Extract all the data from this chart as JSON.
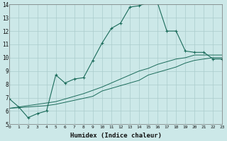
{
  "xlabel": "Humidex (Indice chaleur)",
  "ylabel": "",
  "bg_color": "#cce8e8",
  "grid_color": "#aacccc",
  "line_color": "#1a6b5a",
  "xmin": 0,
  "xmax": 23,
  "ymin": 5,
  "ymax": 14,
  "line1_x": [
    0,
    1,
    2,
    3,
    4,
    5,
    6,
    7,
    8,
    9,
    10,
    11,
    12,
    13,
    14,
    15,
    16,
    17,
    18,
    19,
    20,
    21,
    22,
    23
  ],
  "line1_y": [
    6.9,
    6.3,
    5.5,
    5.8,
    6.0,
    8.7,
    8.1,
    8.4,
    8.5,
    9.8,
    11.1,
    12.2,
    12.6,
    13.8,
    13.9,
    14.15,
    14.1,
    12.0,
    12.0,
    10.5,
    10.4,
    10.4,
    9.9,
    9.9
  ],
  "line2_x": [
    0,
    1,
    2,
    3,
    4,
    5,
    6,
    7,
    8,
    9,
    10,
    11,
    12,
    13,
    14,
    15,
    16,
    17,
    18,
    19,
    20,
    21,
    22,
    23
  ],
  "line2_y": [
    6.2,
    6.25,
    6.3,
    6.35,
    6.4,
    6.5,
    6.65,
    6.8,
    6.95,
    7.1,
    7.5,
    7.7,
    7.9,
    8.1,
    8.3,
    8.7,
    8.9,
    9.1,
    9.3,
    9.6,
    9.8,
    9.9,
    10.0,
    10.0
  ],
  "line3_x": [
    0,
    1,
    2,
    3,
    4,
    5,
    6,
    7,
    8,
    9,
    10,
    11,
    12,
    13,
    14,
    15,
    16,
    17,
    18,
    19,
    20,
    21,
    22,
    23
  ],
  "line3_y": [
    6.2,
    6.3,
    6.4,
    6.5,
    6.6,
    6.7,
    6.9,
    7.1,
    7.3,
    7.55,
    7.8,
    8.1,
    8.4,
    8.7,
    9.0,
    9.2,
    9.5,
    9.7,
    9.9,
    10.0,
    10.2,
    10.2,
    10.2,
    10.2
  ],
  "xtick_labels": [
    "0",
    "1",
    "2",
    "3",
    "4",
    "5",
    "6",
    "7",
    "8",
    "9",
    "10",
    "11",
    "12",
    "13",
    "14",
    "15",
    "16",
    "17",
    "18",
    "19",
    "20",
    "21",
    "22",
    "23"
  ],
  "ytick_labels": [
    "5",
    "6",
    "7",
    "8",
    "9",
    "10",
    "11",
    "12",
    "13",
    "14"
  ]
}
